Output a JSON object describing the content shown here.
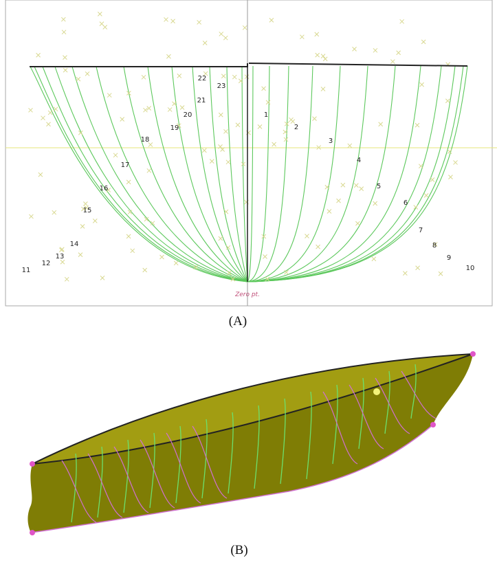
{
  "panel_a": {
    "station_labels": [
      "1",
      "2",
      "3",
      "4",
      "5",
      "6",
      "7",
      "8",
      "9",
      "10",
      "11",
      "12",
      "13",
      "14",
      "15",
      "16",
      "17",
      "18",
      "19",
      "20",
      "21",
      "22",
      "23"
    ],
    "origin_label": "Zero pt.",
    "caption": "(A)"
  },
  "panel_b": {
    "caption": "(B)"
  }
}
